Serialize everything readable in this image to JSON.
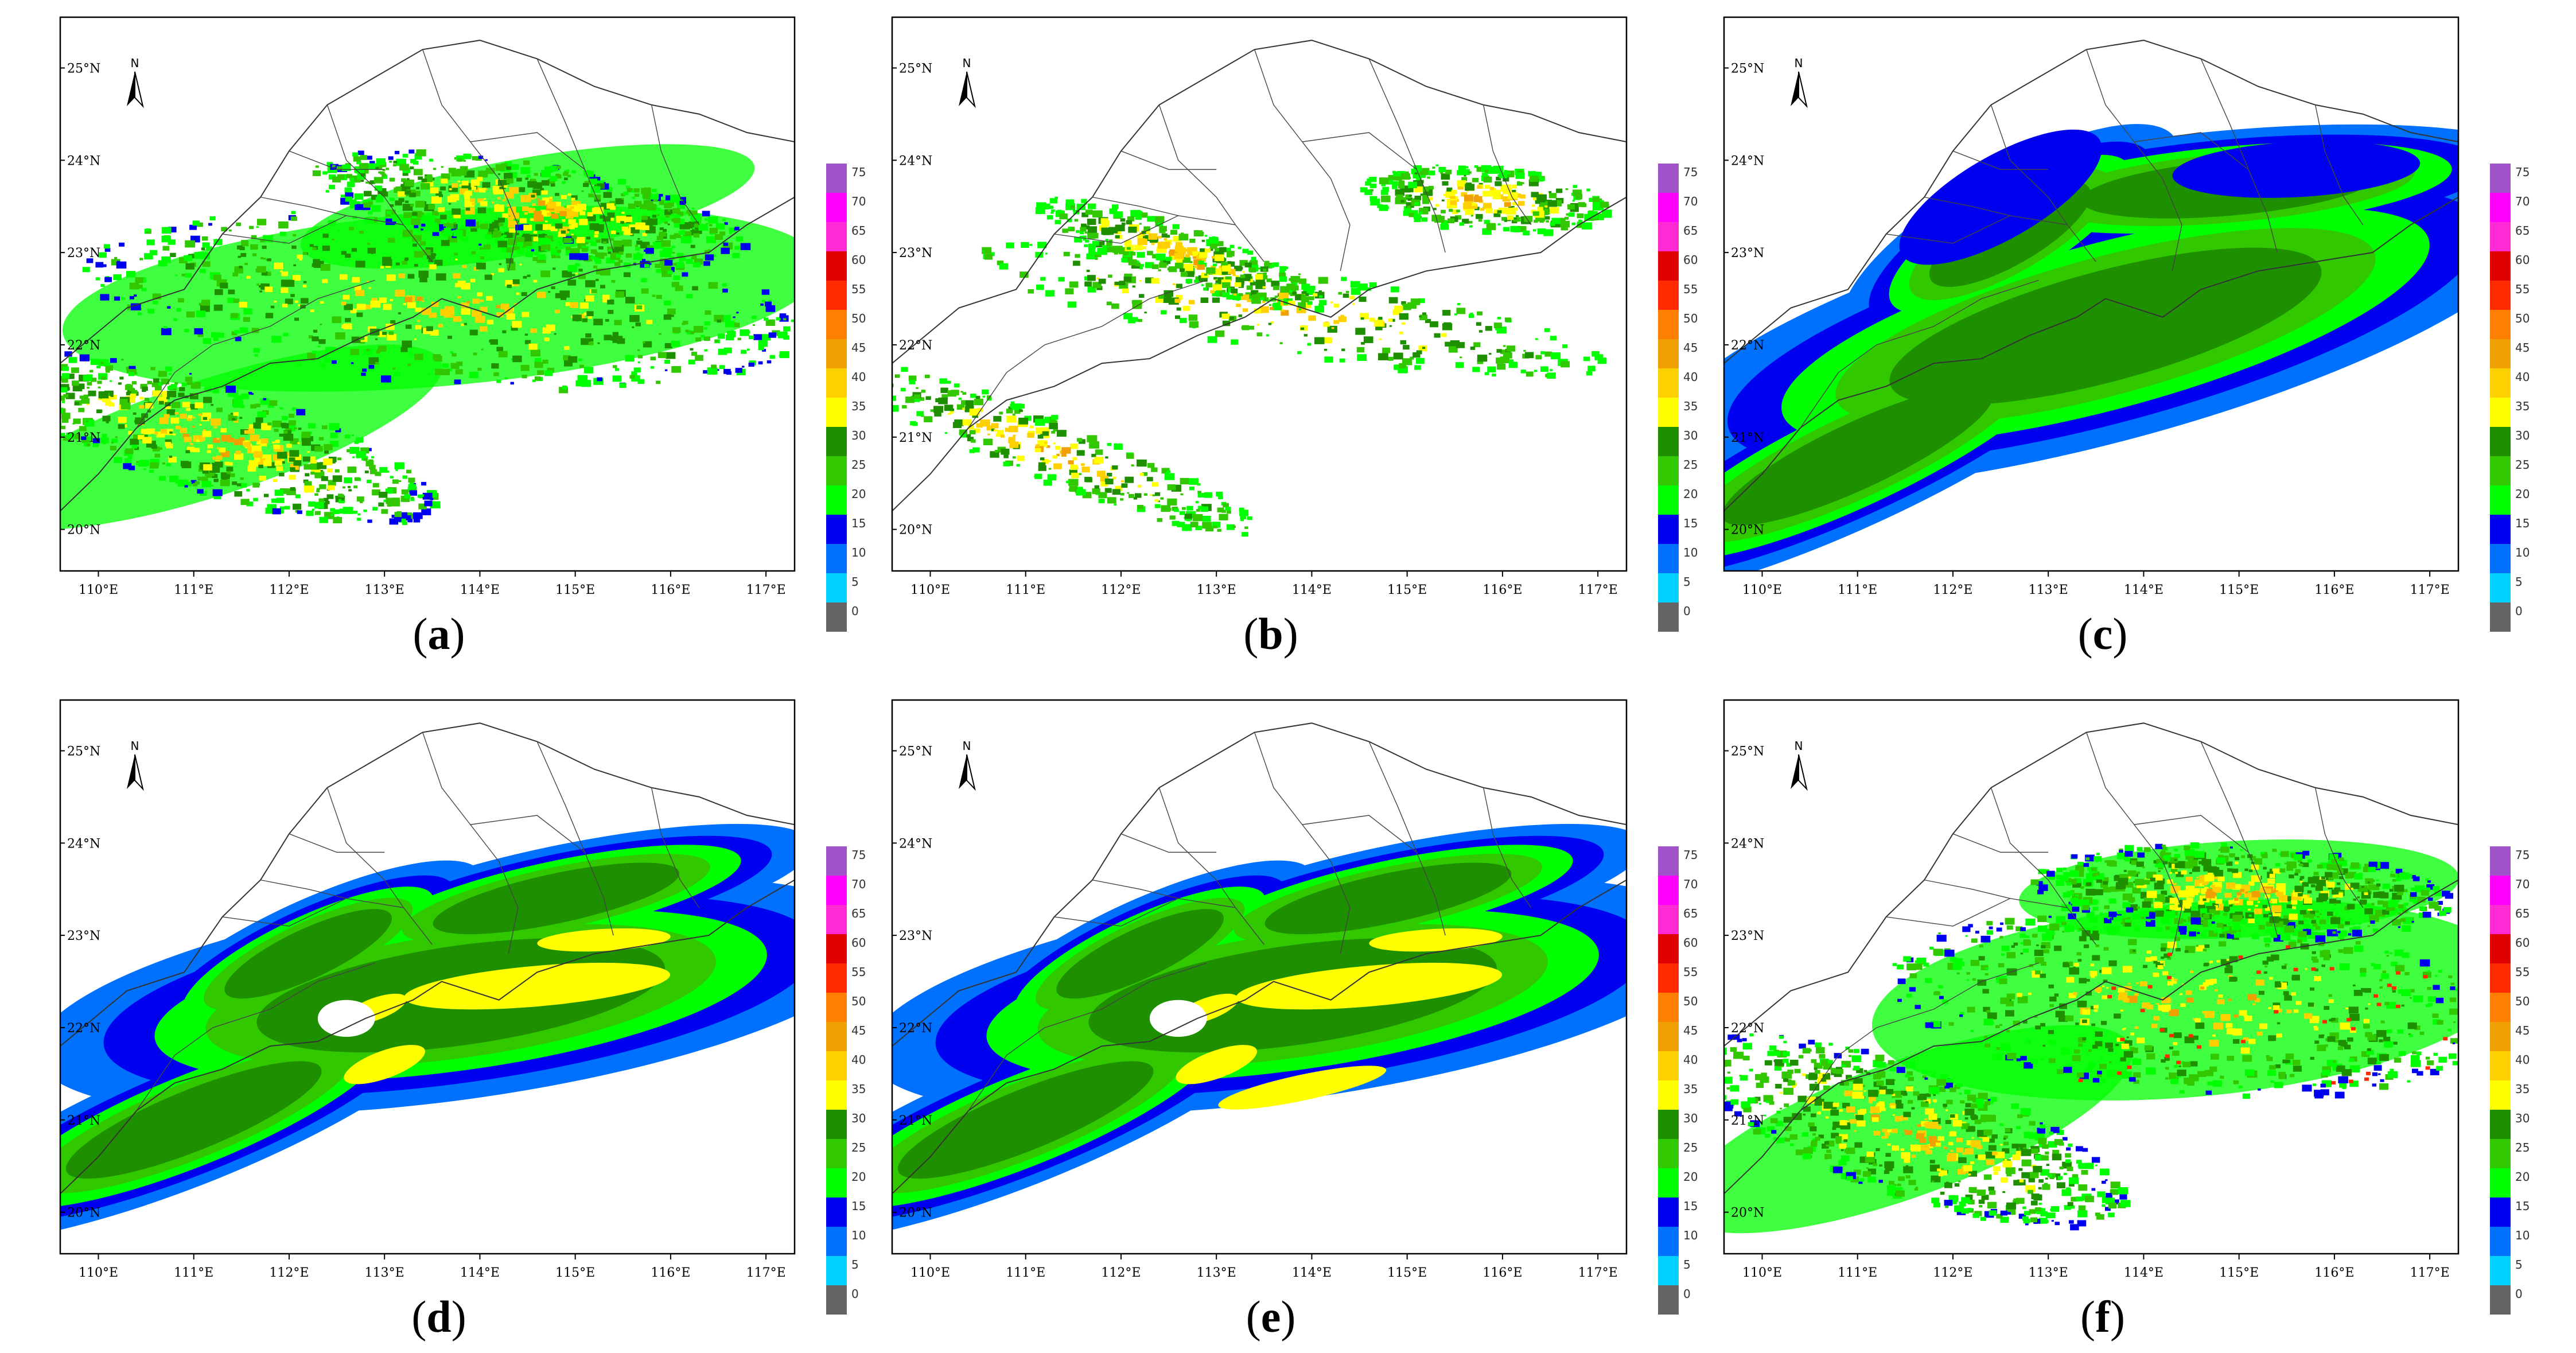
{
  "figure": {
    "lat_labels": [
      "25°N",
      "24°N",
      "23°N",
      "22°N",
      "21°N",
      "20°N"
    ],
    "lon_labels": [
      "110°E",
      "111°E",
      "112°E",
      "113°E",
      "114°E",
      "115°E",
      "116°E",
      "117°E"
    ],
    "north_arrow_label": "N",
    "colorbar": {
      "labels": [
        "75",
        "70",
        "65",
        "60",
        "55",
        "50",
        "45",
        "40",
        "35",
        "30",
        "25",
        "20",
        "15",
        "10",
        "5",
        "0"
      ],
      "colors": [
        "#a052c8",
        "#ff00ff",
        "#ff2ad4",
        "#e10000",
        "#ff2a00",
        "#ff7f00",
        "#f0a000",
        "#ffd000",
        "#ffff00",
        "#1e9000",
        "#32c800",
        "#00ff00",
        "#0000f0",
        "#0070ff",
        "#00d0ff",
        "#646464"
      ]
    },
    "panels": [
      {
        "id": "a",
        "label_open": "(",
        "label_letter": "a",
        "label_close": ")",
        "style": "observed"
      },
      {
        "id": "b",
        "label_open": "(",
        "label_letter": "b",
        "label_close": ")",
        "style": "forecast-b"
      },
      {
        "id": "c",
        "label_open": "(",
        "label_letter": "c",
        "label_close": ")",
        "style": "smooth-c"
      },
      {
        "id": "d",
        "label_open": "(",
        "label_letter": "d",
        "label_close": ")",
        "style": "smooth-d"
      },
      {
        "id": "e",
        "label_open": "(",
        "label_letter": "e",
        "label_close": ")",
        "style": "smooth-e"
      },
      {
        "id": "f",
        "label_open": "(",
        "label_letter": "f",
        "label_close": ")",
        "style": "observed-f"
      }
    ]
  }
}
